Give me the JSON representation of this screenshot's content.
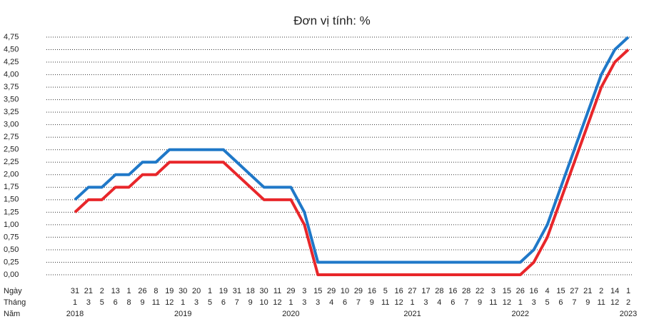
{
  "chart_data": {
    "type": "line",
    "title": "Đơn vị tính: %",
    "row_labels": [
      "Ngày",
      "Tháng",
      "Năm"
    ],
    "categories": [
      "31",
      "21",
      "2",
      "13",
      "1",
      "26",
      "8",
      "19",
      "30",
      "20",
      "1",
      "19",
      "31",
      "18",
      "30",
      "11",
      "29",
      "3",
      "15",
      "29",
      "10",
      "29",
      "16",
      "5",
      "16",
      "27",
      "17",
      "28",
      "16",
      "28",
      "22",
      "3",
      "15",
      "26",
      "16",
      "4",
      "15",
      "27",
      "21",
      "2",
      "14",
      "1"
    ],
    "months": [
      "1",
      "3",
      "5",
      "6",
      "8",
      "9",
      "11",
      "12",
      "1",
      "3",
      "5",
      "6",
      "7",
      "9",
      "10",
      "12",
      "1",
      "3",
      "3",
      "4",
      "6",
      "7",
      "9",
      "11",
      "12",
      "1",
      "3",
      "4",
      "6",
      "7",
      "9",
      "11",
      "12",
      "1",
      "3",
      "5",
      "6",
      "7",
      "9",
      "11",
      "12",
      "2"
    ],
    "years": [
      "2018",
      null,
      null,
      null,
      null,
      null,
      null,
      null,
      "2019",
      null,
      null,
      null,
      null,
      null,
      null,
      null,
      "2020",
      null,
      null,
      null,
      null,
      null,
      null,
      null,
      null,
      "2021",
      null,
      null,
      null,
      null,
      null,
      null,
      null,
      "2022",
      null,
      null,
      null,
      null,
      null,
      null,
      null,
      "2023"
    ],
    "series": [
      {
        "color": "#1f78c8",
        "values": [
          1.5,
          1.75,
          1.75,
          2,
          2,
          2.25,
          2.25,
          2.5,
          2.5,
          2.5,
          2.5,
          2.5,
          2.25,
          2,
          1.75,
          1.75,
          1.75,
          1.25,
          0.25,
          0.25,
          0.25,
          0.25,
          0.25,
          0.25,
          0.25,
          0.25,
          0.25,
          0.25,
          0.25,
          0.25,
          0.25,
          0.25,
          0.25,
          0.25,
          0.5,
          1,
          1.75,
          2.5,
          3.25,
          4,
          4.5,
          4.75
        ]
      },
      {
        "color": "#e8262a",
        "values": [
          1.25,
          1.5,
          1.5,
          1.75,
          1.75,
          2,
          2,
          2.25,
          2.25,
          2.25,
          2.25,
          2.25,
          2,
          1.75,
          1.5,
          1.5,
          1.5,
          1,
          0,
          0,
          0,
          0,
          0,
          0,
          0,
          0,
          0,
          0,
          0,
          0,
          0,
          0,
          0,
          0,
          0.25,
          0.75,
          1.5,
          2.25,
          3,
          3.75,
          4.25,
          4.5
        ]
      }
    ],
    "ylim": [
      0,
      4.75
    ],
    "yticks": [
      {
        "value": 0,
        "label": "0,00"
      },
      {
        "value": 0.25,
        "label": "0,25"
      },
      {
        "value": 0.5,
        "label": "0,50"
      },
      {
        "value": 0.75,
        "label": "0,75"
      },
      {
        "value": 1,
        "label": "1,00"
      },
      {
        "value": 1.25,
        "label": "1,25"
      },
      {
        "value": 1.5,
        "label": "1,50"
      },
      {
        "value": 1.75,
        "label": "1,75"
      },
      {
        "value": 2,
        "label": "2,00"
      },
      {
        "value": 2.25,
        "label": "2,25"
      },
      {
        "value": 2.5,
        "label": "2,50"
      },
      {
        "value": 2.75,
        "label": "2,75"
      },
      {
        "value": 3,
        "label": "3,00"
      },
      {
        "value": 3.25,
        "label": "3,25"
      },
      {
        "value": 3.5,
        "label": "3,50"
      },
      {
        "value": 3.75,
        "label": "3,75"
      },
      {
        "value": 4,
        "label": "4,00"
      },
      {
        "value": 4.25,
        "label": "4,25"
      },
      {
        "value": 4.5,
        "label": "4,50"
      },
      {
        "value": 4.75,
        "label": "4,75"
      }
    ],
    "grid": true
  }
}
